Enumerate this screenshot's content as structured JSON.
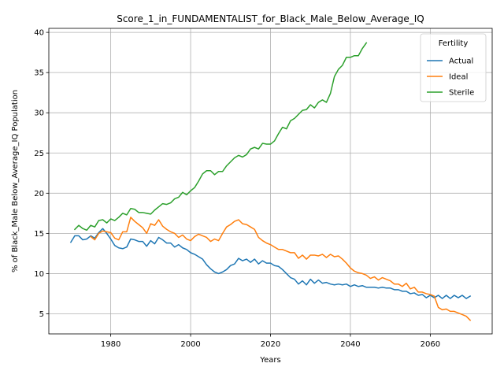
{
  "chart_data": {
    "type": "line",
    "title": "Score_1_in_FUNDAMENTALIST_for_Black_Male_Below_Average_IQ",
    "xlabel": "Years",
    "ylabel": "% of Black_Male Below_Average_IQ Population",
    "xlim": [
      1964.5,
      2075.5
    ],
    "ylim": [
      2.5,
      40.5
    ],
    "xticks": [
      1980,
      2000,
      2020,
      2040,
      2060
    ],
    "yticks": [
      5,
      10,
      15,
      20,
      25,
      30,
      35,
      40
    ],
    "grid": true,
    "legend": {
      "title": "Fertility",
      "placement": "top-right"
    },
    "series": [
      {
        "name": "Actual",
        "color": "#1f77b4",
        "points": [
          [
            1970,
            13.9
          ],
          [
            1971,
            14.7
          ],
          [
            1972,
            14.7
          ],
          [
            1973,
            14.2
          ],
          [
            1974,
            14.3
          ],
          [
            1975,
            14.7
          ],
          [
            1976,
            14.4
          ],
          [
            1977,
            15.1
          ],
          [
            1978,
            15.6
          ],
          [
            1979,
            15.0
          ],
          [
            1980,
            14.3
          ],
          [
            1981,
            13.5
          ],
          [
            1982,
            13.2
          ],
          [
            1983,
            13.1
          ],
          [
            1984,
            13.3
          ],
          [
            1985,
            14.3
          ],
          [
            1986,
            14.2
          ],
          [
            1987,
            14.0
          ],
          [
            1988,
            14.0
          ],
          [
            1989,
            13.4
          ],
          [
            1990,
            14.1
          ],
          [
            1991,
            13.7
          ],
          [
            1992,
            14.5
          ],
          [
            1993,
            14.2
          ],
          [
            1994,
            13.8
          ],
          [
            1995,
            13.8
          ],
          [
            1996,
            13.3
          ],
          [
            1997,
            13.6
          ],
          [
            1998,
            13.2
          ],
          [
            1999,
            13.0
          ],
          [
            2000,
            12.6
          ],
          [
            2001,
            12.4
          ],
          [
            2002,
            12.1
          ],
          [
            2003,
            11.8
          ],
          [
            2004,
            11.1
          ],
          [
            2005,
            10.6
          ],
          [
            2006,
            10.2
          ],
          [
            2007,
            10.0
          ],
          [
            2008,
            10.2
          ],
          [
            2009,
            10.5
          ],
          [
            2010,
            11.0
          ],
          [
            2011,
            11.2
          ],
          [
            2012,
            11.9
          ],
          [
            2013,
            11.6
          ],
          [
            2014,
            11.8
          ],
          [
            2015,
            11.4
          ],
          [
            2016,
            11.8
          ],
          [
            2017,
            11.2
          ],
          [
            2018,
            11.6
          ],
          [
            2019,
            11.3
          ],
          [
            2020,
            11.3
          ],
          [
            2021,
            11.0
          ],
          [
            2022,
            10.9
          ],
          [
            2023,
            10.5
          ],
          [
            2024,
            10.0
          ],
          [
            2025,
            9.5
          ],
          [
            2026,
            9.3
          ],
          [
            2027,
            8.7
          ],
          [
            2028,
            9.1
          ],
          [
            2029,
            8.6
          ],
          [
            2030,
            9.3
          ],
          [
            2031,
            8.8
          ],
          [
            2032,
            9.2
          ],
          [
            2033,
            8.8
          ],
          [
            2034,
            8.9
          ],
          [
            2035,
            8.7
          ],
          [
            2036,
            8.6
          ],
          [
            2037,
            8.7
          ],
          [
            2038,
            8.6
          ],
          [
            2039,
            8.7
          ],
          [
            2040,
            8.4
          ],
          [
            2041,
            8.6
          ],
          [
            2042,
            8.4
          ],
          [
            2043,
            8.5
          ],
          [
            2044,
            8.3
          ],
          [
            2045,
            8.3
          ],
          [
            2046,
            8.3
          ],
          [
            2047,
            8.2
          ],
          [
            2048,
            8.3
          ],
          [
            2049,
            8.2
          ],
          [
            2050,
            8.2
          ],
          [
            2051,
            8.0
          ],
          [
            2052,
            8.0
          ],
          [
            2053,
            7.8
          ],
          [
            2054,
            7.8
          ],
          [
            2055,
            7.5
          ],
          [
            2056,
            7.6
          ],
          [
            2057,
            7.3
          ],
          [
            2058,
            7.4
          ],
          [
            2059,
            7.0
          ],
          [
            2060,
            7.3
          ],
          [
            2061,
            7.0
          ],
          [
            2062,
            7.3
          ],
          [
            2063,
            6.9
          ],
          [
            2064,
            7.3
          ],
          [
            2065,
            6.9
          ],
          [
            2066,
            7.3
          ],
          [
            2067,
            7.0
          ],
          [
            2068,
            7.3
          ],
          [
            2069,
            6.9
          ],
          [
            2070,
            7.2
          ]
        ]
      },
      {
        "name": "Ideal",
        "color": "#ff7f0e",
        "points": [
          [
            1975,
            14.6
          ],
          [
            1976,
            14.2
          ],
          [
            1977,
            15.0
          ],
          [
            1978,
            15.3
          ],
          [
            1979,
            15.2
          ],
          [
            1980,
            15.1
          ],
          [
            1981,
            14.4
          ],
          [
            1982,
            14.2
          ],
          [
            1983,
            15.2
          ],
          [
            1984,
            15.2
          ],
          [
            1985,
            17.0
          ],
          [
            1986,
            16.5
          ],
          [
            1987,
            16.1
          ],
          [
            1988,
            15.7
          ],
          [
            1989,
            15.0
          ],
          [
            1990,
            16.2
          ],
          [
            1991,
            16.0
          ],
          [
            1992,
            16.7
          ],
          [
            1993,
            15.9
          ],
          [
            1994,
            15.5
          ],
          [
            1995,
            15.2
          ],
          [
            1996,
            15.0
          ],
          [
            1997,
            14.5
          ],
          [
            1998,
            14.8
          ],
          [
            1999,
            14.3
          ],
          [
            2000,
            14.1
          ],
          [
            2001,
            14.6
          ],
          [
            2002,
            14.9
          ],
          [
            2003,
            14.7
          ],
          [
            2004,
            14.5
          ],
          [
            2005,
            14.0
          ],
          [
            2006,
            14.3
          ],
          [
            2007,
            14.1
          ],
          [
            2008,
            15.0
          ],
          [
            2009,
            15.8
          ],
          [
            2010,
            16.1
          ],
          [
            2011,
            16.5
          ],
          [
            2012,
            16.7
          ],
          [
            2013,
            16.2
          ],
          [
            2014,
            16.1
          ],
          [
            2015,
            15.8
          ],
          [
            2016,
            15.5
          ],
          [
            2017,
            14.5
          ],
          [
            2018,
            14.1
          ],
          [
            2019,
            13.8
          ],
          [
            2020,
            13.6
          ],
          [
            2021,
            13.3
          ],
          [
            2022,
            13.0
          ],
          [
            2023,
            13.0
          ],
          [
            2024,
            12.8
          ],
          [
            2025,
            12.6
          ],
          [
            2026,
            12.6
          ],
          [
            2027,
            11.9
          ],
          [
            2028,
            12.3
          ],
          [
            2029,
            11.8
          ],
          [
            2030,
            12.3
          ],
          [
            2031,
            12.3
          ],
          [
            2032,
            12.2
          ],
          [
            2033,
            12.4
          ],
          [
            2034,
            12.0
          ],
          [
            2035,
            12.4
          ],
          [
            2036,
            12.1
          ],
          [
            2037,
            12.2
          ],
          [
            2038,
            11.8
          ],
          [
            2039,
            11.3
          ],
          [
            2040,
            10.7
          ],
          [
            2041,
            10.3
          ],
          [
            2042,
            10.1
          ],
          [
            2043,
            10.0
          ],
          [
            2044,
            9.8
          ],
          [
            2045,
            9.4
          ],
          [
            2046,
            9.6
          ],
          [
            2047,
            9.2
          ],
          [
            2048,
            9.5
          ],
          [
            2049,
            9.3
          ],
          [
            2050,
            9.1
          ],
          [
            2051,
            8.7
          ],
          [
            2052,
            8.7
          ],
          [
            2053,
            8.4
          ],
          [
            2054,
            8.8
          ],
          [
            2055,
            8.1
          ],
          [
            2056,
            8.3
          ],
          [
            2057,
            7.7
          ],
          [
            2058,
            7.7
          ],
          [
            2059,
            7.5
          ],
          [
            2060,
            7.4
          ],
          [
            2061,
            7.2
          ],
          [
            2062,
            5.8
          ],
          [
            2063,
            5.5
          ],
          [
            2064,
            5.6
          ],
          [
            2065,
            5.3
          ],
          [
            2066,
            5.3
          ],
          [
            2067,
            5.1
          ],
          [
            2068,
            4.9
          ],
          [
            2069,
            4.7
          ],
          [
            2070,
            4.2
          ]
        ]
      },
      {
        "name": "Sterile",
        "color": "#2ca02c",
        "points": [
          [
            1971,
            15.5
          ],
          [
            1972,
            16.0
          ],
          [
            1973,
            15.6
          ],
          [
            1974,
            15.4
          ],
          [
            1975,
            16.0
          ],
          [
            1976,
            15.8
          ],
          [
            1977,
            16.6
          ],
          [
            1978,
            16.7
          ],
          [
            1979,
            16.3
          ],
          [
            1980,
            16.8
          ],
          [
            1981,
            16.6
          ],
          [
            1982,
            17.0
          ],
          [
            1983,
            17.5
          ],
          [
            1984,
            17.3
          ],
          [
            1985,
            18.1
          ],
          [
            1986,
            18.0
          ],
          [
            1987,
            17.6
          ],
          [
            1988,
            17.6
          ],
          [
            1989,
            17.5
          ],
          [
            1990,
            17.4
          ],
          [
            1991,
            17.9
          ],
          [
            1992,
            18.3
          ],
          [
            1993,
            18.7
          ],
          [
            1994,
            18.6
          ],
          [
            1995,
            18.8
          ],
          [
            1996,
            19.3
          ],
          [
            1997,
            19.5
          ],
          [
            1998,
            20.1
          ],
          [
            1999,
            19.8
          ],
          [
            2000,
            20.3
          ],
          [
            2001,
            20.7
          ],
          [
            2002,
            21.5
          ],
          [
            2003,
            22.4
          ],
          [
            2004,
            22.8
          ],
          [
            2005,
            22.8
          ],
          [
            2006,
            22.3
          ],
          [
            2007,
            22.7
          ],
          [
            2008,
            22.7
          ],
          [
            2009,
            23.4
          ],
          [
            2010,
            23.9
          ],
          [
            2011,
            24.4
          ],
          [
            2012,
            24.7
          ],
          [
            2013,
            24.5
          ],
          [
            2014,
            24.8
          ],
          [
            2015,
            25.5
          ],
          [
            2016,
            25.7
          ],
          [
            2017,
            25.5
          ],
          [
            2018,
            26.2
          ],
          [
            2019,
            26.1
          ],
          [
            2020,
            26.1
          ],
          [
            2021,
            26.5
          ],
          [
            2022,
            27.4
          ],
          [
            2023,
            28.2
          ],
          [
            2024,
            28.0
          ],
          [
            2025,
            29.0
          ],
          [
            2026,
            29.3
          ],
          [
            2027,
            29.8
          ],
          [
            2028,
            30.3
          ],
          [
            2029,
            30.4
          ],
          [
            2030,
            31.0
          ],
          [
            2031,
            30.6
          ],
          [
            2032,
            31.3
          ],
          [
            2033,
            31.6
          ],
          [
            2034,
            31.3
          ],
          [
            2035,
            32.4
          ],
          [
            2036,
            34.5
          ],
          [
            2037,
            35.4
          ],
          [
            2038,
            35.9
          ],
          [
            2039,
            36.9
          ],
          [
            2040,
            36.9
          ],
          [
            2041,
            37.1
          ],
          [
            2042,
            37.1
          ],
          [
            2043,
            38.0
          ],
          [
            2044,
            38.7
          ]
        ]
      }
    ]
  }
}
